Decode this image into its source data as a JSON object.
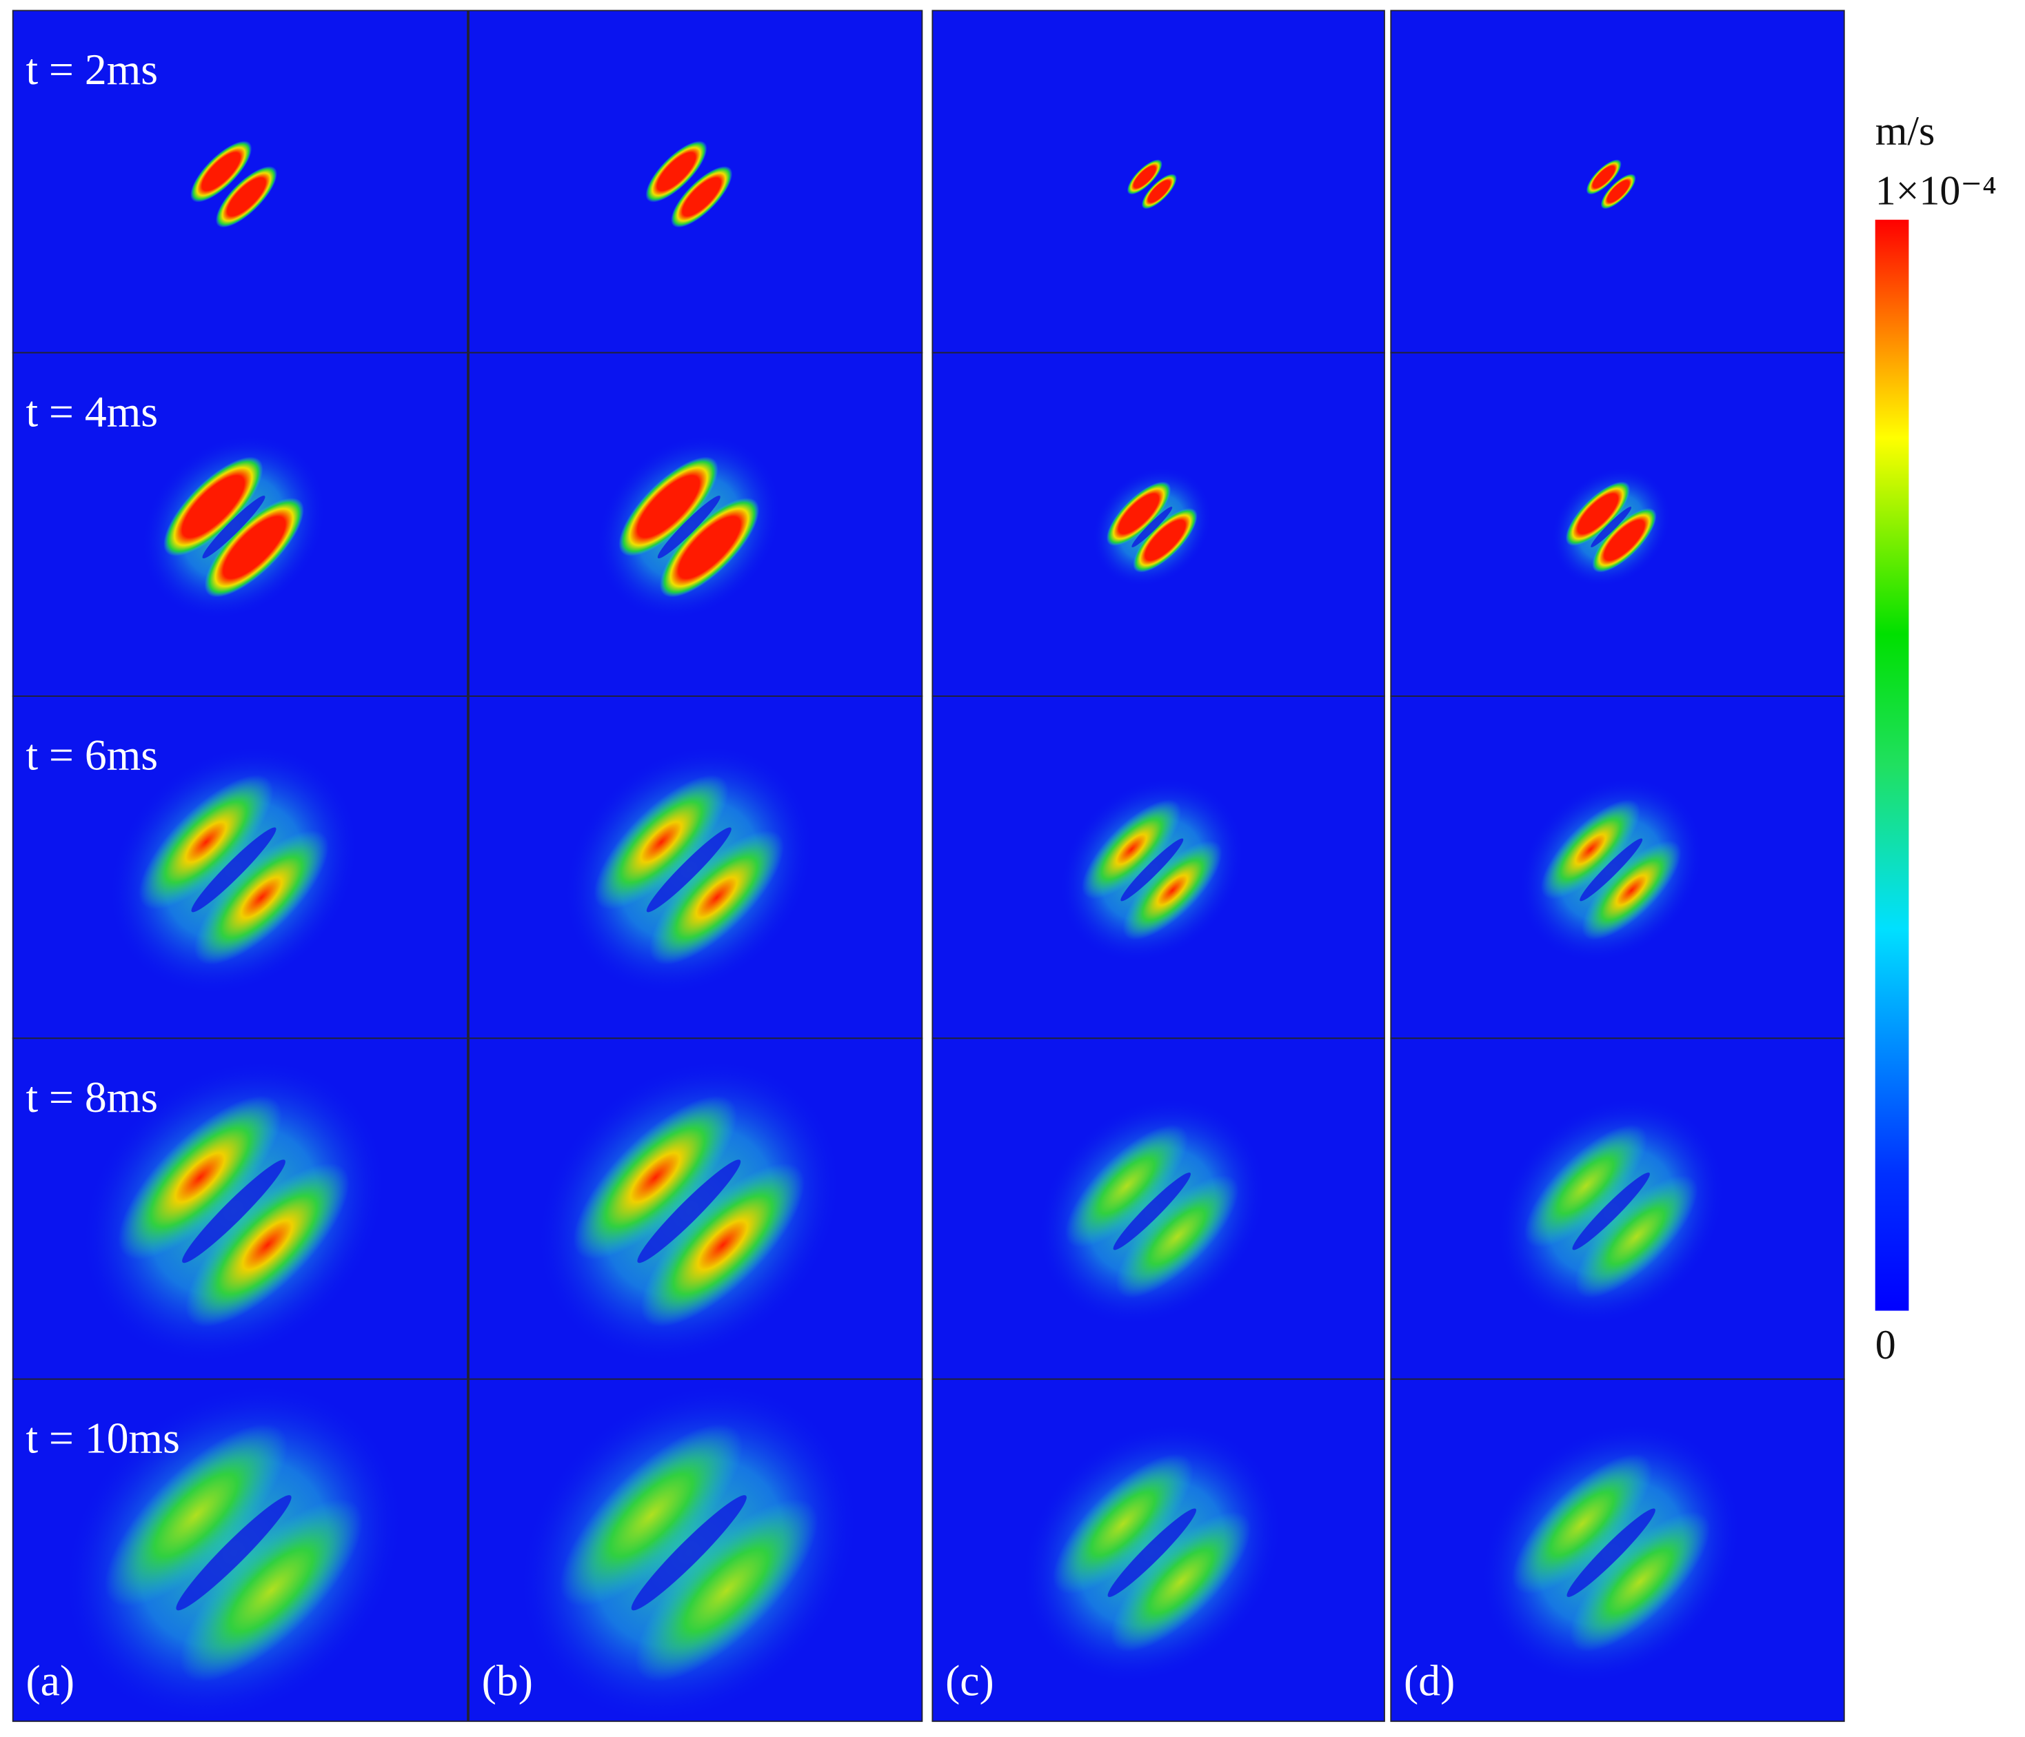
{
  "figure": {
    "row_labels": [
      "t = 2ms",
      "t = 4ms",
      "t = 6ms",
      "t = 8ms",
      "t = 10ms"
    ],
    "panel_labels": [
      "(a)",
      "(b)",
      "(c)",
      "(d)"
    ],
    "colorbar": {
      "unit": "m/s",
      "max_label": "1×10⁻⁴",
      "min_label": "0"
    }
  }
}
